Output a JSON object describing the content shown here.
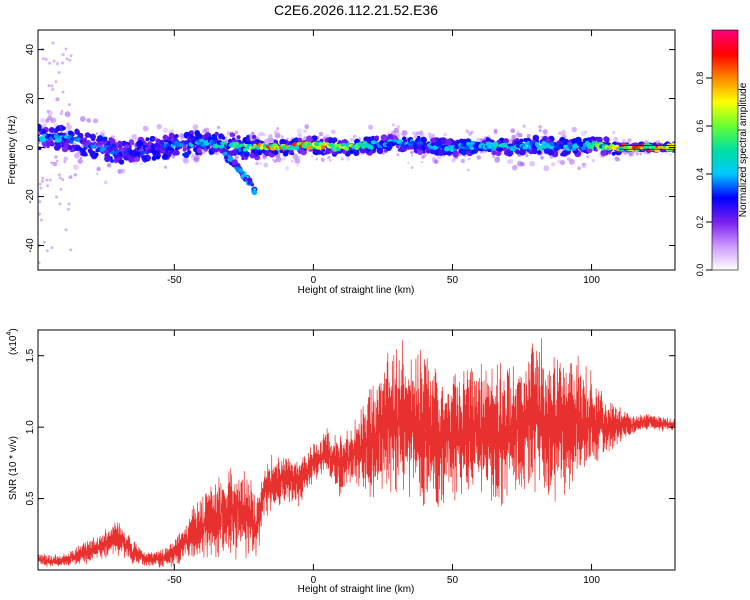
{
  "title": "C2E6.2026.112.21.52.E36",
  "chart_data": [
    {
      "type": "heatmap",
      "xlabel": "Height of straight line (km)",
      "ylabel": "Frequency (Hz)",
      "xlim": [
        -99,
        130
      ],
      "ylim": [
        -50,
        48
      ],
      "xticks": [
        -50,
        0,
        50,
        100
      ],
      "yticks": [
        -40,
        -20,
        0,
        20,
        40
      ],
      "xtick_labels": [
        "-50",
        "0",
        "50",
        "100"
      ],
      "ytick_labels": [
        "-40",
        "-20",
        "0",
        "20",
        "40"
      ],
      "colorbar": {
        "label": "Normalized spectral amplitude",
        "range": [
          0,
          1
        ],
        "ticks": [
          0.0,
          0.2,
          0.4,
          0.6,
          0.8
        ],
        "tick_labels": [
          "0.0",
          "0.2",
          "0.4",
          "0.6",
          "0.8"
        ],
        "colors": [
          "#ffffff",
          "#cc99ff",
          "#7a1ff0",
          "#0000ff",
          "#00c8ff",
          "#00e0a0",
          "#66ff33",
          "#ffff00",
          "#ff8800",
          "#ff0000",
          "#ff0080"
        ]
      },
      "ridge": {
        "x": [
          -99,
          -90,
          -80,
          -70,
          -60,
          -50,
          -40,
          -30,
          -25,
          -20,
          -10,
          0,
          10,
          20,
          30,
          40,
          50,
          60,
          70,
          80,
          90,
          100,
          110,
          120,
          130
        ],
        "frequency": [
          4,
          4,
          1,
          -2,
          -1,
          1,
          2,
          1,
          0,
          0,
          0,
          1,
          0,
          1,
          2,
          1,
          0,
          1,
          0,
          1,
          0,
          1,
          0,
          0,
          0
        ],
        "amplitude": [
          0.45,
          0.4,
          0.35,
          0.35,
          0.3,
          0.4,
          0.45,
          0.5,
          0.5,
          0.8,
          0.85,
          0.8,
          0.8,
          0.45,
          0.4,
          0.4,
          0.45,
          0.45,
          0.45,
          0.45,
          0.45,
          0.5,
          0.8,
          0.9,
          0.9
        ]
      },
      "branch": {
        "x": [
          -32,
          -29,
          -26,
          -23,
          -21
        ],
        "frequency": [
          -3,
          -6,
          -10,
          -14,
          -18
        ]
      }
    },
    {
      "type": "line",
      "xlabel": "Height of straight line (km)",
      "ylabel": "SNR (10 * v/v)",
      "scale_label": "(x10",
      "scale_exp": "4",
      "xlim": [
        -99,
        130
      ],
      "ylim": [
        0,
        1.68
      ],
      "xticks": [
        -50,
        0,
        50,
        100
      ],
      "yticks": [
        0.5,
        1.0,
        1.5
      ],
      "xtick_labels": [
        "-50",
        "0",
        "50",
        "100"
      ],
      "ytick_labels": [
        "0.5",
        "1.0",
        "1.5"
      ],
      "color": "#e8312e",
      "series": [
        {
          "name": "SNR",
          "x": [
            -99,
            -95,
            -90,
            -85,
            -80,
            -75,
            -70,
            -65,
            -60,
            -55,
            -50,
            -45,
            -40,
            -35,
            -30,
            -25,
            -20,
            -18,
            -15,
            -10,
            -5,
            0,
            5,
            10,
            15,
            20,
            25,
            30,
            35,
            40,
            45,
            50,
            55,
            60,
            65,
            70,
            75,
            80,
            85,
            90,
            95,
            100,
            105,
            110,
            115,
            120,
            125,
            130
          ],
          "value": [
            0.08,
            0.06,
            0.07,
            0.1,
            0.14,
            0.17,
            0.24,
            0.13,
            0.07,
            0.08,
            0.12,
            0.22,
            0.3,
            0.35,
            0.45,
            0.4,
            0.32,
            0.55,
            0.6,
            0.65,
            0.62,
            0.75,
            0.82,
            0.72,
            0.85,
            0.9,
            1.0,
            1.03,
            1.08,
            1.0,
            0.92,
            0.95,
            0.98,
            1.0,
            0.95,
            0.97,
            1.05,
            1.08,
            1.0,
            1.0,
            1.05,
            1.05,
            1.0,
            1.02,
            1.02,
            1.04,
            1.02,
            1.02
          ],
          "amplitude": [
            0.04,
            0.04,
            0.05,
            0.06,
            0.08,
            0.1,
            0.12,
            0.08,
            0.05,
            0.06,
            0.1,
            0.15,
            0.2,
            0.25,
            0.3,
            0.3,
            0.2,
            0.2,
            0.18,
            0.15,
            0.15,
            0.12,
            0.15,
            0.2,
            0.2,
            0.35,
            0.45,
            0.5,
            0.5,
            0.5,
            0.45,
            0.4,
            0.4,
            0.4,
            0.45,
            0.45,
            0.45,
            0.5,
            0.5,
            0.45,
            0.4,
            0.3,
            0.2,
            0.12,
            0.06,
            0.05,
            0.05,
            0.04
          ]
        }
      ]
    }
  ]
}
